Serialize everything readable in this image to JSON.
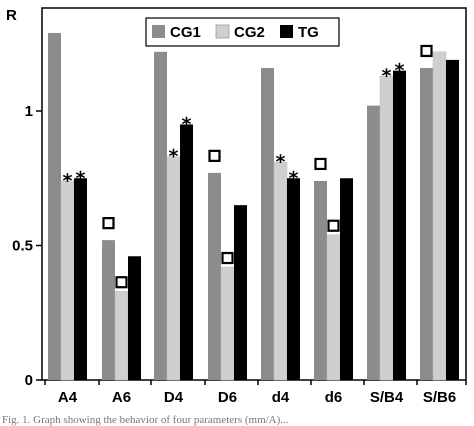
{
  "chart_data": {
    "type": "bar",
    "ylabel": "R",
    "ylim": [
      0,
      1.35
    ],
    "yticks": [
      {
        "value": 0,
        "label": "0"
      },
      {
        "value": 0.5,
        "label": "0.5"
      },
      {
        "value": 1,
        "label": "1"
      }
    ],
    "categories": [
      "A4",
      "A6",
      "D4",
      "D6",
      "d4",
      "d6",
      "S/B4",
      "S/B6"
    ],
    "series": [
      {
        "name": "CG1",
        "color": "#8c8c8c",
        "values": [
          1.29,
          0.52,
          1.22,
          0.77,
          1.16,
          0.74,
          1.02,
          1.16
        ]
      },
      {
        "name": "CG2",
        "color": "#cfcfcf",
        "values": [
          0.74,
          0.33,
          0.83,
          0.42,
          0.81,
          0.54,
          1.13,
          1.22
        ]
      },
      {
        "name": "TG",
        "color": "#000000",
        "values": [
          0.75,
          0.46,
          0.95,
          0.65,
          0.75,
          0.75,
          1.15,
          1.19
        ]
      }
    ],
    "annotations": [
      {
        "category": 0,
        "series": 1,
        "symbol": "*"
      },
      {
        "category": 0,
        "series": 2,
        "symbol": "*"
      },
      {
        "category": 1,
        "series": 0,
        "symbol": "square"
      },
      {
        "category": 1,
        "series": 1,
        "symbol": "square"
      },
      {
        "category": 2,
        "series": 1,
        "symbol": "*"
      },
      {
        "category": 2,
        "series": 2,
        "symbol": "*"
      },
      {
        "category": 3,
        "series": 0,
        "symbol": "square"
      },
      {
        "category": 3,
        "series": 1,
        "symbol": "square"
      },
      {
        "category": 4,
        "series": 1,
        "symbol": "*"
      },
      {
        "category": 4,
        "series": 2,
        "symbol": "*"
      },
      {
        "category": 5,
        "series": 0,
        "symbol": "square"
      },
      {
        "category": 5,
        "series": 1,
        "symbol": "square"
      },
      {
        "category": 6,
        "series": 1,
        "symbol": "*"
      },
      {
        "category": 6,
        "series": 2,
        "symbol": "*"
      },
      {
        "category": 7,
        "series": 0,
        "symbol": "square"
      }
    ],
    "legend": {
      "placement": "top-center"
    },
    "grid": false
  },
  "caption_fragment": "Fig. 1. Graph showing the behavior of four parameters (mm/A)..."
}
